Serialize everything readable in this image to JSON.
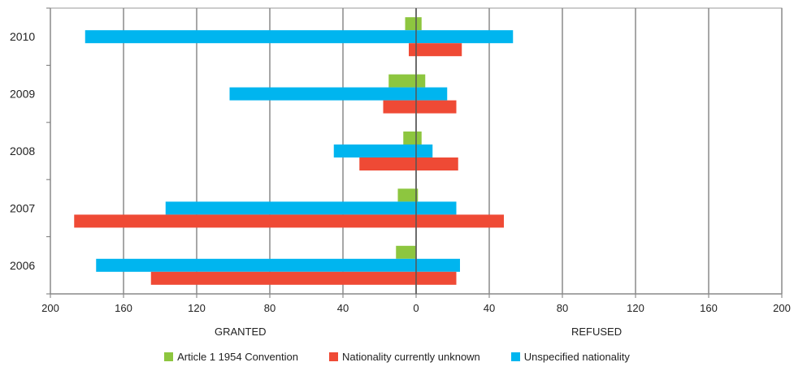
{
  "chart_data": {
    "type": "bar",
    "orientation": "horizontal",
    "categories": [
      "2010",
      "2009",
      "2008",
      "2007",
      "2006"
    ],
    "x_ticks": [
      "200",
      "160",
      "120",
      "80",
      "40",
      "0",
      "40",
      "80",
      "120",
      "160",
      "200"
    ],
    "xlim": [
      -200,
      200
    ],
    "left_label": "GRANTED",
    "right_label": "REFUSED",
    "grid": true,
    "legend_position": "bottom",
    "series": [
      {
        "name": "Article 1 1954 Convention",
        "color": "#8DC63F",
        "values": [
          [
            -6,
            3
          ],
          [
            -15,
            5
          ],
          [
            -7,
            3
          ],
          [
            -10,
            1
          ],
          [
            -11,
            0
          ]
        ]
      },
      {
        "name": "Unspecified nationality",
        "color": "#00B5EF",
        "values": [
          [
            -181,
            53
          ],
          [
            -102,
            17
          ],
          [
            -45,
            9
          ],
          [
            -137,
            22
          ],
          [
            -175,
            24
          ]
        ]
      },
      {
        "name": "Nationality  currently unknown",
        "color": "#EF4A35",
        "values": [
          [
            -4,
            25
          ],
          [
            -18,
            22
          ],
          [
            -31,
            23
          ],
          [
            -187,
            48
          ],
          [
            -145,
            22
          ]
        ]
      }
    ],
    "legend": [
      {
        "label": "Article 1 1954 Convention",
        "color": "#8DC63F"
      },
      {
        "label": "Nationality  currently unknown",
        "color": "#EF4A35"
      },
      {
        "label": "Unspecified nationality",
        "color": "#00B5EF"
      }
    ]
  }
}
